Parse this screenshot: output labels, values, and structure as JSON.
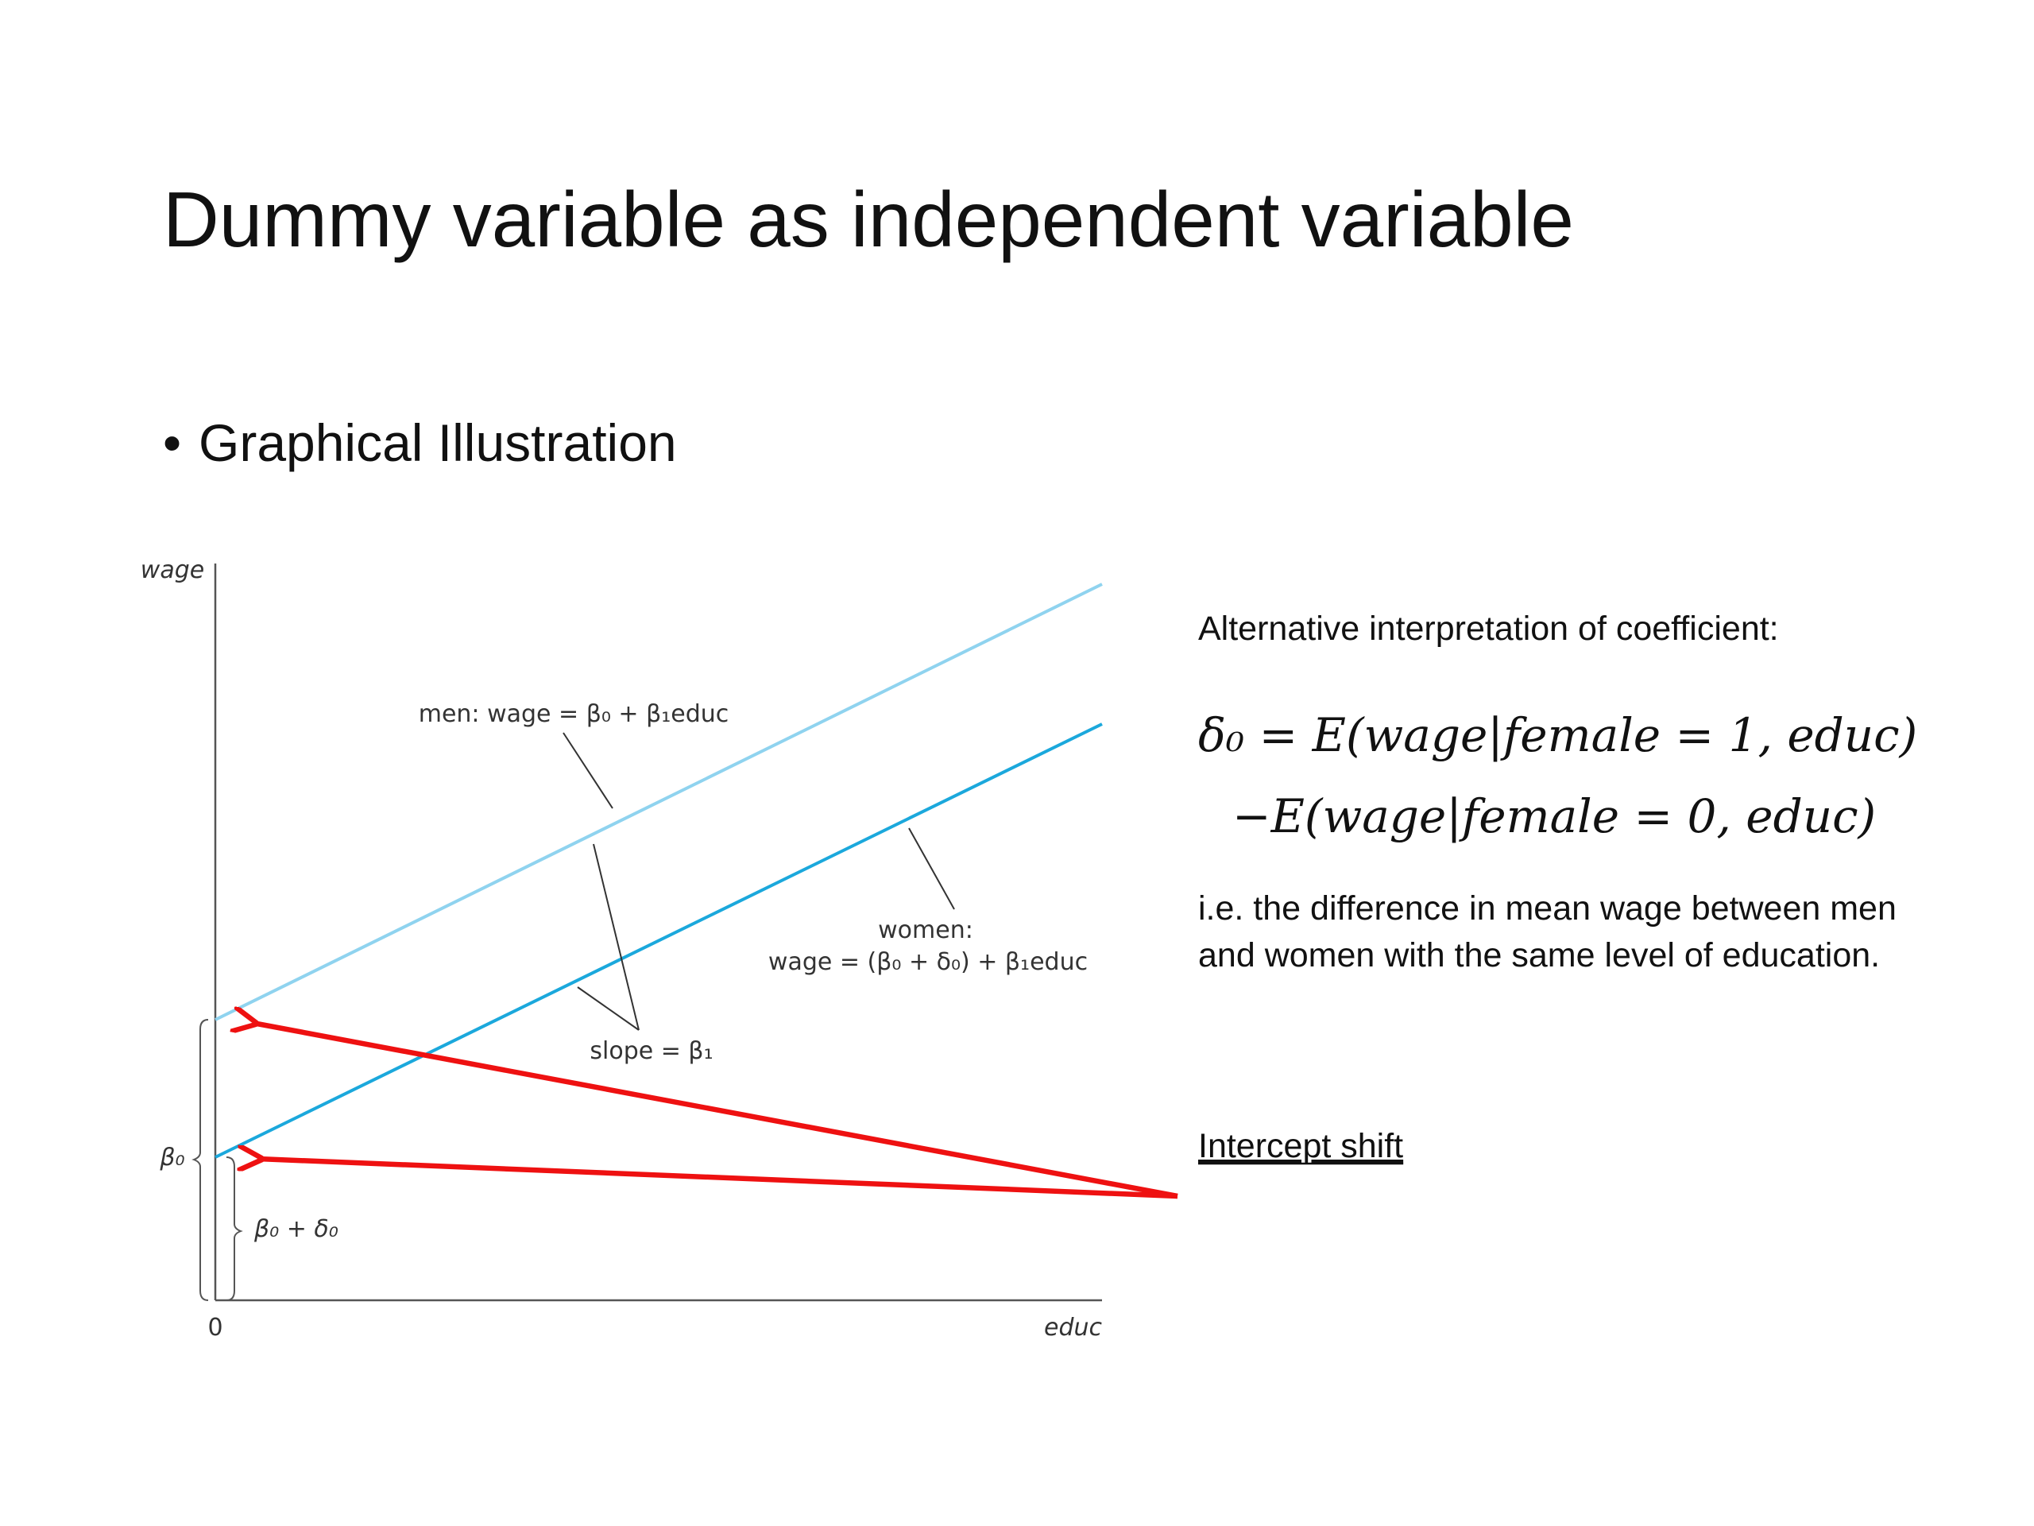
{
  "slide": {
    "title": "Dummy variable as independent variable",
    "bullet": "Graphical Illustration",
    "figure": {
      "y_axis_label": "wage",
      "x_axis_label": "educ",
      "origin_label": "0",
      "men_label": "men: wage = β₀ + β₁educ",
      "women_label_1": "women:",
      "women_label_2": "wage = (β₀ + δ₀) + β₁educ",
      "slope_label": "slope = β₁",
      "men_intercept_label": "β₀",
      "women_intercept_label": "β₀ + δ₀"
    },
    "side": {
      "heading": "Alternative interpretation of coefficient:",
      "formula_line_1": "δ₀ = E(wage|female = 1, educ)",
      "formula_line_2": "−E(wage|female = 0, educ)",
      "explanation_line_1": "i.e. the difference in mean wage between men",
      "explanation_line_2": "and women with the same level of education.",
      "intercept_shift": "Intercept shift"
    }
  }
}
